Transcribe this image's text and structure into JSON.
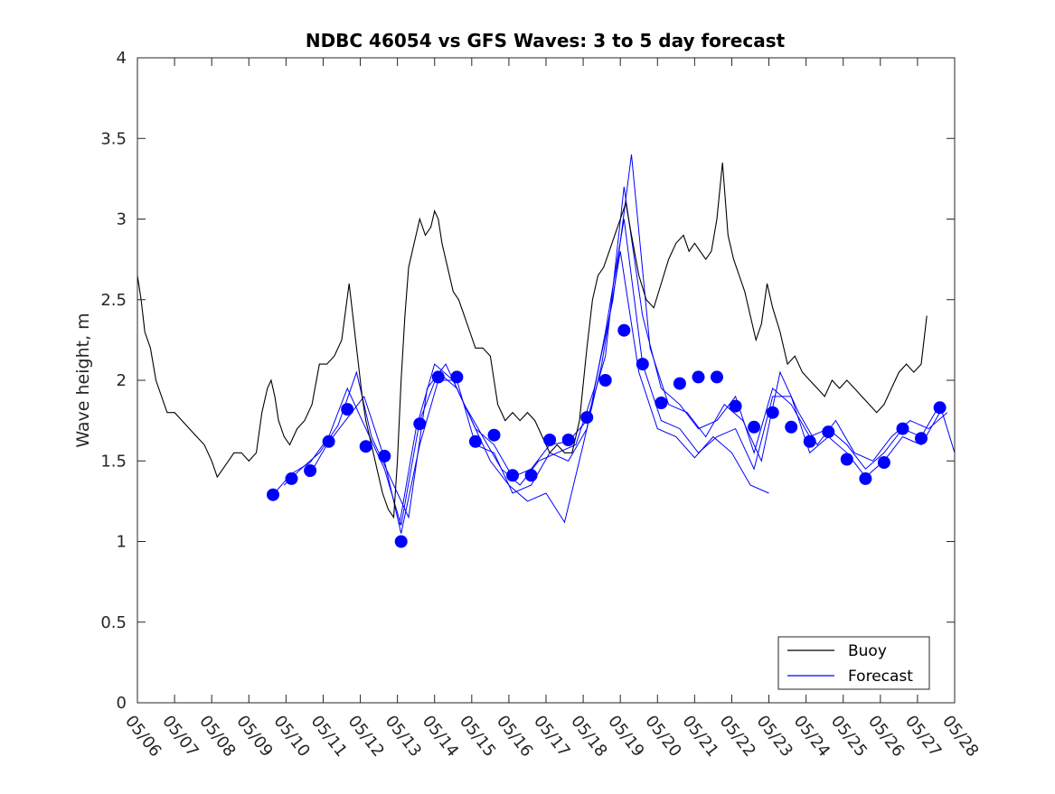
{
  "chart_data": {
    "type": "line",
    "title": "NDBC 46054 vs GFS Waves: 3 to 5 day forecast",
    "xlabel": "",
    "ylabel": "Wave height, m",
    "xlim": [
      6.0,
      28.0
    ],
    "ylim": [
      0,
      4
    ],
    "x_tick_labels": [
      "05/06",
      "05/07",
      "05/08",
      "05/09",
      "05/10",
      "05/11",
      "05/12",
      "05/13",
      "05/14",
      "05/15",
      "05/16",
      "05/17",
      "05/18",
      "05/19",
      "05/20",
      "05/21",
      "05/22",
      "05/23",
      "05/24",
      "05/25",
      "05/26",
      "05/27",
      "05/28"
    ],
    "y_tick_labels": [
      "0",
      "0.5",
      "1",
      "1.5",
      "2",
      "2.5",
      "3",
      "3.5",
      "4"
    ],
    "y_ticks": [
      0,
      0.5,
      1,
      1.5,
      2,
      2.5,
      3,
      3.5,
      4
    ],
    "grid": false,
    "legend": {
      "position": "bottom-right",
      "entries": [
        {
          "label": "Buoy",
          "color": "#000000"
        },
        {
          "label": "Forecast",
          "color": "#0000ff"
        }
      ]
    },
    "series": [
      {
        "name": "Buoy",
        "color": "#000000",
        "style": "line",
        "x": [
          6.0,
          6.1,
          6.2,
          6.35,
          6.5,
          6.65,
          6.8,
          7.0,
          7.2,
          7.4,
          7.6,
          7.8,
          8.0,
          8.15,
          8.3,
          8.45,
          8.6,
          8.8,
          9.0,
          9.2,
          9.35,
          9.5,
          9.6,
          9.7,
          9.8,
          9.95,
          10.1,
          10.3,
          10.5,
          10.7,
          10.9,
          11.1,
          11.3,
          11.5,
          11.7,
          11.9,
          12.05,
          12.15,
          12.3,
          12.45,
          12.6,
          12.75,
          12.9,
          13.0,
          13.1,
          13.2,
          13.3,
          13.45,
          13.6,
          13.75,
          13.9,
          14.0,
          14.1,
          14.2,
          14.35,
          14.5,
          14.65,
          14.8,
          14.95,
          15.1,
          15.3,
          15.5,
          15.7,
          15.9,
          16.1,
          16.3,
          16.5,
          16.7,
          16.9,
          17.1,
          17.3,
          17.5,
          17.7,
          17.9,
          18.1,
          18.25,
          18.4,
          18.55,
          18.7,
          18.85,
          19.0,
          19.15,
          19.3,
          19.5,
          19.7,
          19.9,
          20.1,
          20.3,
          20.5,
          20.7,
          20.85,
          21.0,
          21.15,
          21.3,
          21.45,
          21.6,
          21.75,
          21.9,
          22.05,
          22.2,
          22.35,
          22.5,
          22.65,
          22.8,
          22.95,
          23.1,
          23.3,
          23.5,
          23.7,
          23.9,
          24.1,
          24.3,
          24.5,
          24.7,
          24.9,
          25.1,
          25.3,
          25.5,
          25.7,
          25.9,
          26.1,
          26.3,
          26.5,
          26.7,
          26.9,
          27.1,
          27.25
        ],
        "values": [
          2.65,
          2.5,
          2.3,
          2.2,
          2.0,
          1.9,
          1.8,
          1.8,
          1.75,
          1.7,
          1.65,
          1.6,
          1.5,
          1.4,
          1.45,
          1.5,
          1.55,
          1.55,
          1.5,
          1.55,
          1.8,
          1.95,
          2.0,
          1.9,
          1.75,
          1.65,
          1.6,
          1.7,
          1.75,
          1.85,
          2.1,
          2.1,
          2.15,
          2.25,
          2.6,
          2.2,
          1.9,
          1.75,
          1.6,
          1.45,
          1.3,
          1.2,
          1.15,
          1.5,
          2.0,
          2.4,
          2.7,
          2.85,
          3.0,
          2.9,
          2.95,
          3.05,
          3.0,
          2.85,
          2.7,
          2.55,
          2.5,
          2.4,
          2.3,
          2.2,
          2.2,
          2.15,
          1.85,
          1.75,
          1.8,
          1.75,
          1.8,
          1.75,
          1.65,
          1.55,
          1.6,
          1.55,
          1.55,
          1.75,
          2.2,
          2.5,
          2.65,
          2.7,
          2.8,
          2.9,
          3.0,
          3.1,
          2.9,
          2.65,
          2.5,
          2.45,
          2.6,
          2.75,
          2.85,
          2.9,
          2.8,
          2.85,
          2.8,
          2.75,
          2.8,
          3.0,
          3.35,
          2.9,
          2.75,
          2.65,
          2.55,
          2.4,
          2.25,
          2.35,
          2.6,
          2.45,
          2.3,
          2.1,
          2.15,
          2.05,
          2.0,
          1.95,
          1.9,
          2.0,
          1.95,
          2.0,
          1.95,
          1.9,
          1.85,
          1.8,
          1.85,
          1.95,
          2.05,
          2.1,
          2.05,
          2.1,
          2.4
        ]
      },
      {
        "name": "Forecast",
        "color": "#0000ff",
        "style": "markers",
        "x": [
          9.65,
          10.15,
          10.65,
          11.15,
          11.65,
          12.15,
          12.65,
          13.1,
          13.6,
          14.1,
          14.6,
          15.1,
          15.6,
          16.1,
          16.6,
          17.1,
          17.6,
          18.1,
          18.6,
          19.1,
          19.6,
          20.1,
          20.6,
          21.1,
          21.6,
          22.1,
          22.6,
          23.1,
          23.6,
          24.1,
          24.6,
          25.1,
          25.6,
          26.1,
          26.6,
          27.1,
          27.6
        ],
        "values": [
          1.29,
          1.39,
          1.44,
          1.62,
          1.82,
          1.59,
          1.53,
          1.0,
          1.73,
          2.02,
          2.02,
          1.62,
          1.66,
          1.41,
          1.41,
          1.63,
          1.63,
          1.77,
          2.0,
          2.31,
          2.1,
          1.86,
          1.98,
          2.02,
          2.02,
          1.84,
          1.71,
          1.8,
          1.71,
          1.62,
          1.68,
          1.51,
          1.39,
          1.49,
          1.7,
          1.64,
          1.83
        ]
      }
    ],
    "forecast_runs": [
      {
        "color": "#0000ff",
        "x": [
          9.65,
          10.15,
          10.65,
          11.15,
          11.65,
          12.15,
          12.65,
          13.1,
          13.6,
          14.1,
          14.6,
          15.1,
          15.6,
          16.1,
          16.6,
          17.1,
          17.6,
          18.1,
          18.6,
          19.1,
          19.6,
          20.1,
          20.6,
          21.1,
          21.6,
          22.1,
          22.6,
          23.1,
          23.6,
          24.1,
          24.6,
          25.1,
          25.6,
          26.1,
          26.6,
          27.1,
          27.6,
          28.0
        ],
        "values": [
          1.29,
          1.42,
          1.49,
          1.65,
          1.95,
          1.7,
          1.45,
          1.1,
          1.75,
          2.05,
          1.95,
          1.7,
          1.6,
          1.4,
          1.45,
          1.6,
          1.62,
          1.75,
          2.15,
          3.2,
          2.4,
          1.95,
          1.85,
          1.7,
          1.75,
          1.9,
          1.55,
          1.95,
          1.85,
          1.65,
          1.7,
          1.6,
          1.45,
          1.55,
          1.7,
          1.65,
          1.85,
          1.55
        ]
      },
      {
        "color": "#0000ff",
        "x": [
          9.95,
          10.4,
          10.9,
          11.4,
          11.9,
          12.3,
          12.8,
          13.3,
          13.8,
          14.3,
          14.8,
          15.3,
          15.8,
          16.3,
          16.8,
          17.3,
          17.8,
          18.3,
          18.8,
          19.3,
          19.8,
          20.3,
          20.8,
          21.3,
          21.8,
          22.3,
          22.8,
          23.3,
          23.8,
          24.3,
          24.8,
          25.3,
          25.8,
          26.3,
          26.8,
          27.3,
          27.8
        ],
        "values": [
          1.35,
          1.45,
          1.55,
          1.72,
          2.05,
          1.65,
          1.4,
          1.15,
          1.95,
          2.1,
          1.85,
          1.65,
          1.45,
          1.35,
          1.5,
          1.55,
          1.6,
          1.95,
          2.5,
          3.4,
          2.2,
          1.85,
          1.8,
          1.65,
          1.85,
          1.75,
          1.5,
          2.05,
          1.8,
          1.6,
          1.75,
          1.55,
          1.5,
          1.65,
          1.75,
          1.7,
          1.8
        ]
      },
      {
        "color": "#0000ff",
        "x": [
          10.6,
          11.1,
          11.6,
          12.1,
          12.6,
          13.1,
          13.6,
          14.1,
          14.6,
          15.1,
          15.6,
          16.1,
          16.6,
          17.1,
          17.6,
          18.1,
          18.6,
          19.1,
          19.6,
          20.1,
          20.6,
          21.1,
          21.6,
          22.1,
          22.6,
          23.1,
          23.6,
          24.1,
          24.6,
          25.1,
          25.6,
          26.1,
          26.6,
          27.1,
          27.6
        ],
        "values": [
          1.4,
          1.6,
          1.75,
          1.9,
          1.55,
          1.05,
          1.6,
          2.0,
          2.0,
          1.6,
          1.55,
          1.3,
          1.35,
          1.55,
          1.5,
          1.7,
          2.3,
          3.0,
          2.1,
          1.75,
          1.7,
          1.55,
          1.65,
          1.7,
          1.45,
          1.9,
          1.9,
          1.55,
          1.65,
          1.55,
          1.4,
          1.5,
          1.65,
          1.6,
          1.8
        ]
      },
      {
        "color": "#0000ff",
        "x": [
          13.05,
          13.5,
          14.0,
          14.5,
          15.0,
          15.5,
          16.0,
          16.5,
          17.0,
          17.5,
          18.0,
          18.5,
          19.0,
          19.5,
          20.0,
          20.5,
          21.0,
          21.5,
          22.0,
          22.5,
          23.0
        ],
        "values": [
          1.1,
          1.7,
          2.1,
          2.0,
          1.75,
          1.5,
          1.35,
          1.25,
          1.3,
          1.12,
          1.6,
          2.1,
          2.8,
          2.05,
          1.7,
          1.65,
          1.52,
          1.65,
          1.55,
          1.35,
          1.3
        ]
      }
    ]
  }
}
